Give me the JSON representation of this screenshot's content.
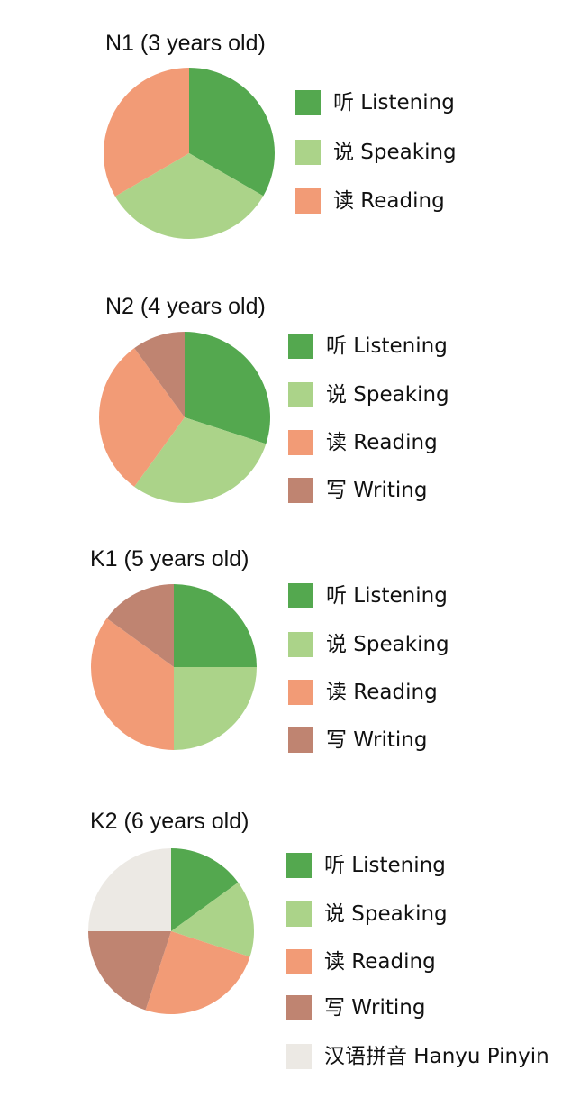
{
  "colors": {
    "listening": "#54a84f",
    "speaking": "#abd389",
    "reading": "#f29b76",
    "writing": "#bf8471",
    "pinyin": "#ece9e4"
  },
  "chart_data": [
    {
      "type": "pie",
      "title": "N1 (3 years old)",
      "slices": [
        {
          "label": "听 Listening",
          "key": "listening",
          "percent": 33.3
        },
        {
          "label": "说 Speaking",
          "key": "speaking",
          "percent": 33.3
        },
        {
          "label": "读 Reading",
          "key": "reading",
          "percent": 33.4
        }
      ]
    },
    {
      "type": "pie",
      "title": "N2 (4 years old)",
      "slices": [
        {
          "label": "听 Listening",
          "key": "listening",
          "percent": 30
        },
        {
          "label": "说 Speaking",
          "key": "speaking",
          "percent": 30
        },
        {
          "label": "读 Reading",
          "key": "reading",
          "percent": 30
        },
        {
          "label": "写 Writing",
          "key": "writing",
          "percent": 10
        }
      ]
    },
    {
      "type": "pie",
      "title": "K1 (5 years old)",
      "slices": [
        {
          "label": "听 Listening",
          "key": "listening",
          "percent": 25
        },
        {
          "label": "说 Speaking",
          "key": "speaking",
          "percent": 25
        },
        {
          "label": "读 Reading",
          "key": "reading",
          "percent": 35
        },
        {
          "label": "写 Writing",
          "key": "writing",
          "percent": 15
        }
      ]
    },
    {
      "type": "pie",
      "title": "K2 (6 years old)",
      "slices": [
        {
          "label": "听 Listening",
          "key": "listening",
          "percent": 15
        },
        {
          "label": "说 Speaking",
          "key": "speaking",
          "percent": 15
        },
        {
          "label": "读 Reading",
          "key": "reading",
          "percent": 25
        },
        {
          "label": "写 Writing",
          "key": "writing",
          "percent": 20
        },
        {
          "label": "汉语拼音 Hanyu Pinyin",
          "key": "pinyin",
          "percent": 25
        }
      ]
    }
  ]
}
